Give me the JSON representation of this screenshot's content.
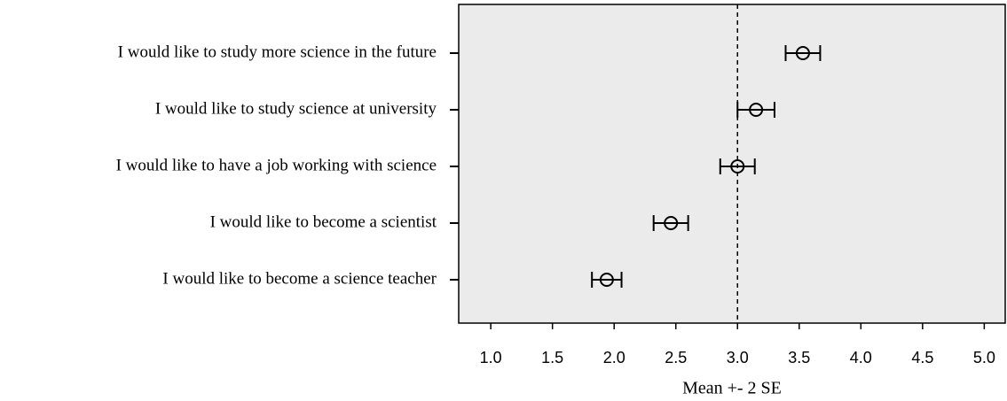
{
  "chart_data": {
    "type": "errorbar",
    "categories": [
      "I would like to study more science in the future",
      "I would like to study science at university",
      "I would like to have a job working with science",
      "I would like to become a scientist",
      "I would like to become a science teacher"
    ],
    "values": [
      3.53,
      3.15,
      3.0,
      2.46,
      1.94
    ],
    "errors": [
      0.14,
      0.15,
      0.14,
      0.14,
      0.12
    ],
    "x_label": "Mean +- 2 SE",
    "reference_line": 3,
    "xlim": [
      0.74,
      5.17
    ],
    "xticks": [
      {
        "value": 1,
        "label": "1.0"
      },
      {
        "value": 1.5,
        "label": "1.5"
      },
      {
        "value": 2,
        "label": "2.0"
      },
      {
        "value": 2.5,
        "label": "2.5"
      },
      {
        "value": 3,
        "label": "3.0"
      },
      {
        "value": 3.5,
        "label": "3.5"
      },
      {
        "value": 4,
        "label": "4.0"
      },
      {
        "value": 4.5,
        "label": "4.5"
      },
      {
        "value": 5,
        "label": "5.0"
      }
    ],
    "background": "#ebebeb",
    "color": "#000000"
  }
}
